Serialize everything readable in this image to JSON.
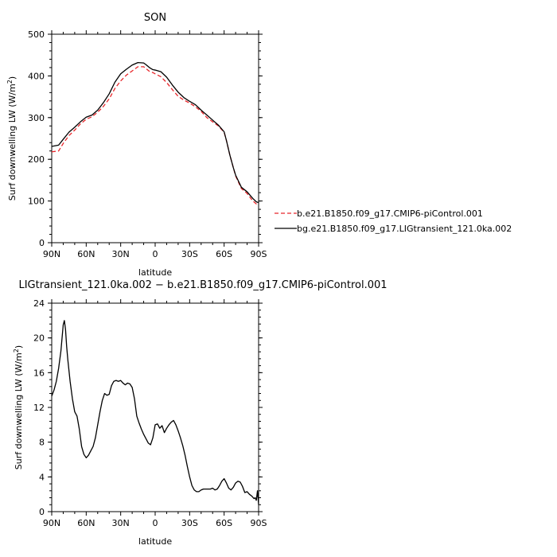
{
  "chart_data": [
    {
      "type": "line",
      "title": "SON",
      "xlabel": "latitude",
      "ylabel": "Surf downwelling LW (W/m²)",
      "ylabel_main": "Surf downwelling LW (W/m",
      "ylabel_sup": "2",
      "ylabel_end": ")",
      "xlim": [
        90,
        -90
      ],
      "ylim": [
        0,
        500
      ],
      "x_ticks": [
        90,
        60,
        30,
        0,
        -30,
        -60,
        -90
      ],
      "x_tick_labels": [
        "90N",
        "60N",
        "30N",
        "0",
        "30S",
        "60S",
        "90S"
      ],
      "y_ticks": [
        0,
        100,
        200,
        300,
        400,
        500
      ],
      "y_tick_labels": [
        "0",
        "100",
        "200",
        "300",
        "400",
        "500"
      ],
      "legend": "right",
      "series": [
        {
          "name": "b.e21.B1850.f09_g17.CMIP6-piControl.001",
          "color": "#e8262a",
          "dash": "dashed",
          "x": [
            90,
            84,
            80,
            75,
            70,
            65,
            60,
            55,
            50,
            45,
            40,
            35,
            30,
            25,
            20,
            15,
            10,
            5,
            2,
            0,
            -5,
            -10,
            -15,
            -20,
            -25,
            -30,
            -35,
            -40,
            -45,
            -50,
            -55,
            -60,
            -62,
            -65,
            -68,
            -70,
            -75,
            -80,
            -85,
            -88,
            -90
          ],
          "y": [
            218,
            220,
            238,
            257,
            270,
            285,
            296,
            302,
            313,
            327,
            345,
            370,
            388,
            402,
            412,
            422,
            422,
            411,
            408,
            405,
            398,
            384,
            367,
            351,
            342,
            335,
            326,
            315,
            300,
            290,
            280,
            265,
            245,
            210,
            180,
            160,
            130,
            118,
            100,
            93,
            92
          ]
        },
        {
          "name": "bg.e21.B1850.f09_g17.LIGtransient_121.0ka.002",
          "color": "#000000",
          "dash": "solid",
          "x": [
            90,
            84,
            80,
            75,
            70,
            65,
            60,
            55,
            50,
            45,
            40,
            35,
            30,
            25,
            20,
            15,
            10,
            8,
            5,
            2,
            0,
            -5,
            -10,
            -15,
            -20,
            -25,
            -30,
            -35,
            -40,
            -45,
            -50,
            -55,
            -60,
            -62,
            -65,
            -68,
            -70,
            -75,
            -80,
            -85,
            -88,
            -90
          ],
          "y": [
            231,
            234,
            248,
            265,
            277,
            290,
            301,
            306,
            318,
            336,
            357,
            385,
            405,
            416,
            426,
            432,
            431,
            427,
            420,
            415,
            414,
            410,
            397,
            378,
            361,
            348,
            339,
            331,
            318,
            306,
            294,
            282,
            266,
            245,
            210,
            180,
            162,
            133,
            122,
            106,
            98,
            96
          ]
        }
      ]
    },
    {
      "type": "line",
      "title": "LIGtransient_121.0ka.002 − b.e21.B1850.f09_g17.CMIP6-piControl.001",
      "xlabel": "latitude",
      "ylabel": "Surf downwelling LW (W/m²)",
      "ylabel_main": "Surf downwelling LW (W/m",
      "ylabel_sup": "2",
      "ylabel_end": ")",
      "xlim": [
        90,
        -90
      ],
      "ylim": [
        0,
        24
      ],
      "x_ticks": [
        90,
        60,
        30,
        0,
        -30,
        -60,
        -90
      ],
      "x_tick_labels": [
        "90N",
        "60N",
        "30N",
        "0",
        "30S",
        "60S",
        "90S"
      ],
      "y_ticks": [
        0,
        4,
        8,
        12,
        16,
        20,
        24
      ],
      "y_tick_labels": [
        "0",
        "4",
        "8",
        "12",
        "16",
        "20",
        "24"
      ],
      "series": [
        {
          "color": "#000000",
          "x": [
            90,
            88,
            86,
            84,
            82,
            80,
            79,
            78,
            77,
            76,
            74,
            72,
            70,
            68,
            66,
            65,
            64,
            62,
            60,
            58,
            56,
            54,
            52,
            50,
            48,
            46,
            44,
            42,
            40,
            38,
            36,
            34,
            32,
            30,
            28,
            26,
            24,
            22,
            20,
            18,
            16,
            14,
            12,
            10,
            8,
            6,
            4,
            2,
            0,
            -2,
            -4,
            -6,
            -8,
            -10,
            -12,
            -14,
            -16,
            -18,
            -20,
            -22,
            -24,
            -26,
            -28,
            -30,
            -32,
            -34,
            -36,
            -38,
            -40,
            -42,
            -44,
            -46,
            -48,
            -50,
            -52,
            -54,
            -56,
            -58,
            -60,
            -62,
            -64,
            -66,
            -68,
            -70,
            -72,
            -74,
            -76,
            -78,
            -80,
            -82,
            -84,
            -86,
            -87,
            -88,
            -89,
            -90
          ],
          "y": [
            13.3,
            14.0,
            15.0,
            16.5,
            18.5,
            21.5,
            22.0,
            21.0,
            19.0,
            17.5,
            15.0,
            13.0,
            11.5,
            11.0,
            9.5,
            8.5,
            7.5,
            6.6,
            6.2,
            6.5,
            7.0,
            7.5,
            8.5,
            10.0,
            11.5,
            12.8,
            13.6,
            13.4,
            13.5,
            14.5,
            15.0,
            15.1,
            15.0,
            15.1,
            14.8,
            14.6,
            14.8,
            14.7,
            14.3,
            13.0,
            11.0,
            10.2,
            9.5,
            8.9,
            8.4,
            7.9,
            7.7,
            8.5,
            10.0,
            10.1,
            9.6,
            9.9,
            9.1,
            9.6,
            10.0,
            10.3,
            10.5,
            10.0,
            9.3,
            8.5,
            7.6,
            6.5,
            5.2,
            4.0,
            3.0,
            2.5,
            2.3,
            2.3,
            2.5,
            2.6,
            2.6,
            2.6,
            2.6,
            2.7,
            2.5,
            2.6,
            3.0,
            3.5,
            3.8,
            3.3,
            2.7,
            2.5,
            2.8,
            3.3,
            3.5,
            3.4,
            2.9,
            2.2,
            2.3,
            2.0,
            1.8,
            1.5,
            1.6,
            1.3,
            2.4,
            0.8
          ]
        }
      ]
    }
  ]
}
